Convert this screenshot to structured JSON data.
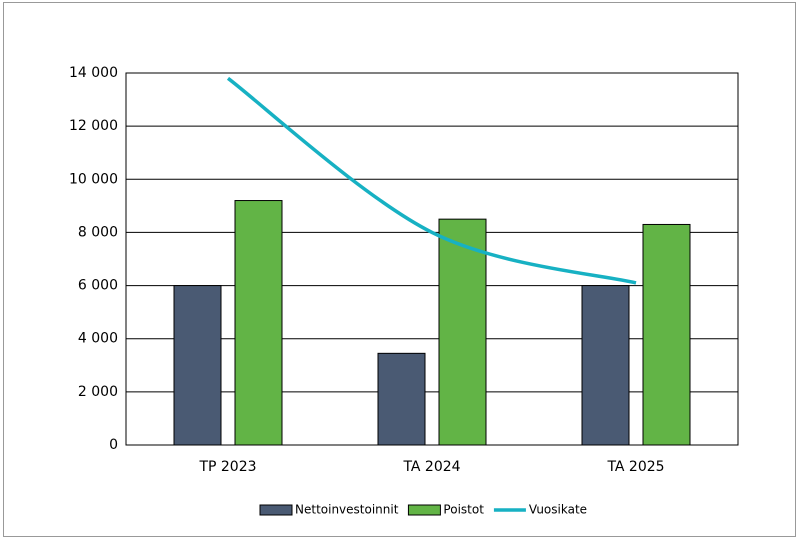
{
  "chart_data": {
    "type": "bar",
    "categories": [
      "TP 2023",
      "TA 2024",
      "TA 2025"
    ],
    "series": [
      {
        "name": "Nettoinvestoinnit",
        "color": "#4a5a73",
        "values": [
          6000,
          3450,
          6000
        ]
      },
      {
        "name": "Poistot",
        "color": "#62b446",
        "values": [
          9200,
          8500,
          8300
        ]
      },
      {
        "name": "Vuosikate",
        "color": "#17b1c3",
        "type": "line",
        "values": [
          13800,
          8000,
          6100
        ]
      }
    ],
    "ylim": [
      0,
      14000
    ],
    "yticks": [
      0,
      {
        "value": 2000,
        "label": "2 000"
      },
      {
        "value": 4000,
        "label": "4 000"
      },
      {
        "value": 6000,
        "label": "6 000"
      },
      {
        "value": 8000,
        "label": "8 000"
      },
      {
        "value": 10000,
        "label": "10 000"
      },
      {
        "value": 12000,
        "label": "12 000"
      },
      {
        "value": 14000,
        "label": "14 000"
      }
    ],
    "grid": true,
    "legend": "bottom"
  }
}
